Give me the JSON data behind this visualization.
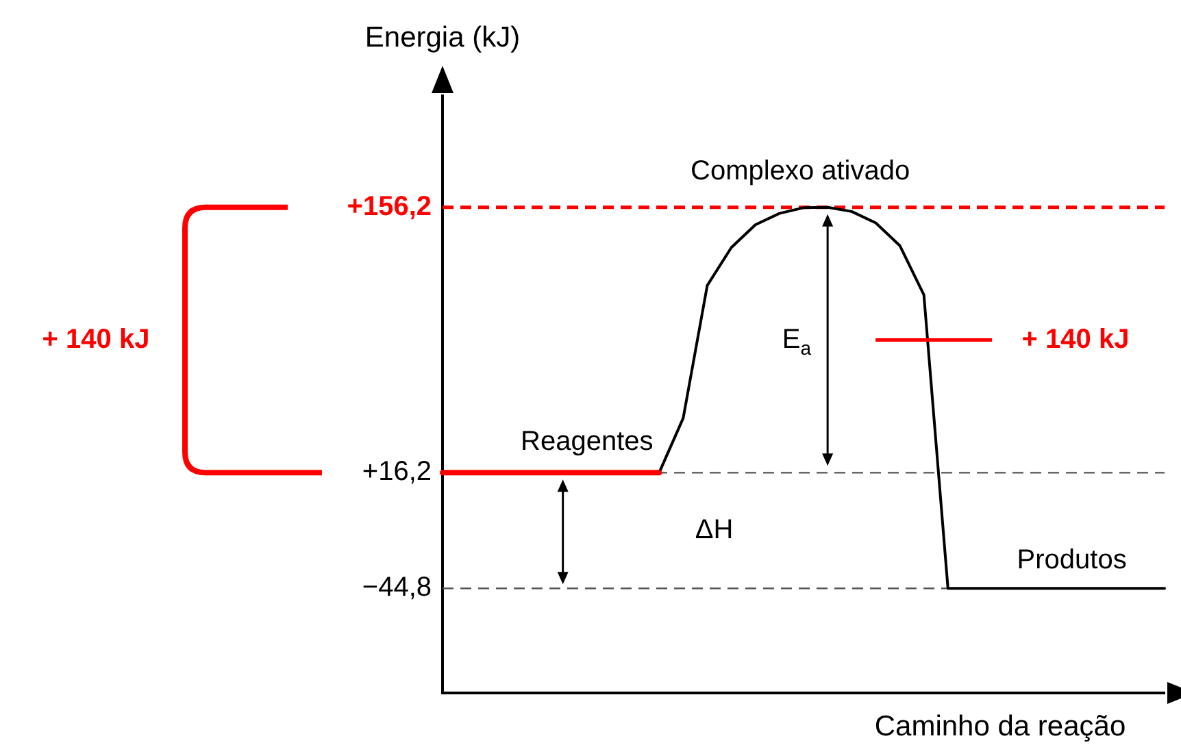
{
  "chart_data": {
    "type": "line",
    "ylabel": "Energia (kJ)",
    "xlabel": "Caminho da reação",
    "categories": [
      null,
      null,
      null,
      null,
      null,
      null,
      null,
      null,
      null,
      null,
      null,
      null,
      null,
      null,
      null,
      null,
      null,
      null,
      null,
      null,
      null,
      null,
      null,
      null,
      null,
      null,
      null,
      null,
      null,
      null,
      null
    ],
    "series": [
      {
        "color": "#ff0000",
        "values": [
          16.2,
          16.2,
          16.2,
          16.2,
          16.2,
          16.2,
          16.2,
          16.2,
          16.2,
          16.2,
          null,
          null,
          null,
          null,
          null,
          null,
          null,
          null,
          null,
          null,
          null,
          null,
          null,
          null,
          null,
          null,
          null,
          null,
          null,
          null,
          null
        ]
      },
      {
        "color": "#000000",
        "values": [
          null,
          null,
          null,
          null,
          null,
          null,
          null,
          null,
          null,
          16.2,
          45,
          115,
          135,
          147,
          153,
          156,
          156.2,
          154,
          148,
          136,
          110,
          -44.8,
          -44.8,
          -44.8,
          -44.8,
          -44.8,
          -44.8,
          -44.8,
          -44.8,
          -44.8,
          -44.8
        ]
      }
    ],
    "ylim": [
      -100,
      215
    ],
    "yticks": [
      {
        "value": -44.8,
        "label": "−44,8"
      },
      {
        "value": 16.2,
        "label": "+16,2"
      },
      {
        "value": 156.2,
        "label": "+156,2"
      }
    ],
    "ref_lines": [
      {
        "axis": "y",
        "value": 156.2,
        "color": "#ff0000",
        "line_style": "dashed"
      },
      {
        "axis": "y",
        "value": 16.2,
        "color": "#555555",
        "line_style": "dashed"
      },
      {
        "axis": "y",
        "value": -44.8,
        "color": "#555555",
        "line_style": "dashed"
      }
    ],
    "annotations": [
      "Complexo ativado",
      "Reagentes",
      "Produtos",
      "E$_{a}$",
      "ΔH",
      "+ 140 kJ",
      "+ 140 kJ"
    ],
    "tick_labels": "y",
    "grid": false,
    "legend": false,
    "marker": "none",
    "line_style": "solid"
  }
}
